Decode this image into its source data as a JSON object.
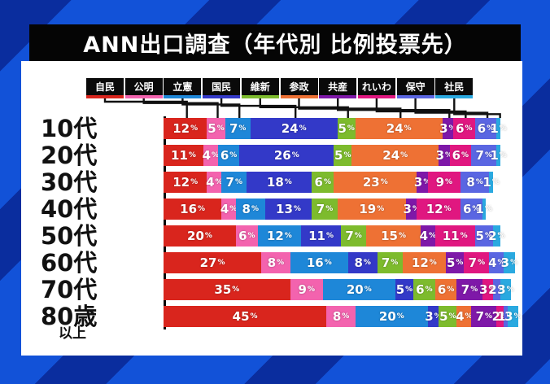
{
  "title": "ANN出口調査（年代別 比例投票先）",
  "chart_data": {
    "type": "bar",
    "stacked": true,
    "orientation": "horizontal",
    "unit": "%",
    "title": "ANN出口調査（年代別 比例投票先）",
    "legend_position": "top",
    "categories": [
      {
        "label": "10代",
        "sub": ""
      },
      {
        "label": "20代",
        "sub": ""
      },
      {
        "label": "30代",
        "sub": ""
      },
      {
        "label": "40代",
        "sub": ""
      },
      {
        "label": "50代",
        "sub": ""
      },
      {
        "label": "60代",
        "sub": ""
      },
      {
        "label": "70代",
        "sub": ""
      },
      {
        "label": "80歳",
        "sub": "以上"
      }
    ],
    "series": [
      {
        "name": "自民",
        "color": "#d9251d",
        "values": [
          12,
          11,
          12,
          16,
          20,
          27,
          35,
          45
        ]
      },
      {
        "name": "公明",
        "color": "#f363ae",
        "values": [
          5,
          4,
          4,
          4,
          6,
          8,
          9,
          8
        ]
      },
      {
        "name": "立憲",
        "color": "#1e87d8",
        "values": [
          7,
          6,
          7,
          8,
          12,
          16,
          20,
          20
        ]
      },
      {
        "name": "国民",
        "color": "#3339c8",
        "values": [
          24,
          26,
          18,
          13,
          11,
          8,
          5,
          3
        ]
      },
      {
        "name": "維新",
        "color": "#7dbb2d",
        "values": [
          5,
          5,
          6,
          7,
          7,
          7,
          6,
          5
        ]
      },
      {
        "name": "参政",
        "color": "#ee7134",
        "values": [
          24,
          24,
          23,
          19,
          15,
          12,
          6,
          4
        ]
      },
      {
        "name": "共産",
        "color": "#7e18a8",
        "values": [
          3,
          3,
          3,
          3,
          4,
          5,
          7,
          7
        ]
      },
      {
        "name": "れいわ",
        "color": "#e01780",
        "values": [
          6,
          6,
          9,
          12,
          11,
          7,
          3,
          2
        ]
      },
      {
        "name": "保守",
        "color": "#5a66e2",
        "values": [
          6,
          7,
          8,
          6,
          5,
          4,
          2,
          1
        ]
      },
      {
        "name": "社民",
        "color": "#2aa9e0",
        "values": [
          1,
          1,
          1,
          1,
          2,
          3,
          3,
          3
        ]
      }
    ],
    "value_suffix": "%",
    "xlim": [
      0,
      100
    ],
    "background": {
      "stripe_dark": "#0a2d9e",
      "stripe_light": "#1252d8",
      "card": "#ffffff",
      "title_bar": "#050505"
    }
  }
}
